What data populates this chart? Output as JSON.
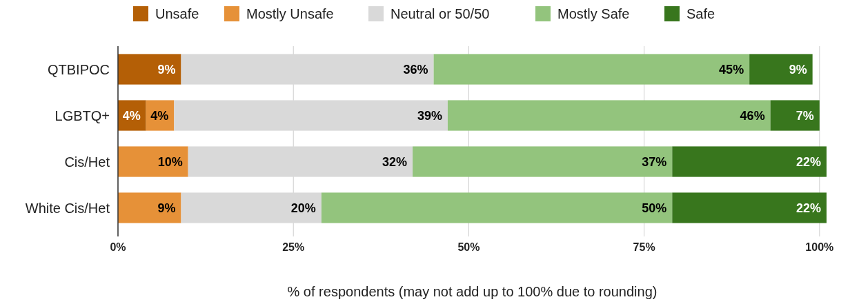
{
  "chart_data": {
    "type": "bar",
    "orientation": "horizontal",
    "stacked": true,
    "xlabel": "% of respondents (may not add up to 100% due to rounding)",
    "categories": [
      "QTBIPOC",
      "LGBTQ+",
      "Cis/Het",
      "White Cis/Het"
    ],
    "series": [
      {
        "name": "Unsafe",
        "color": "#b45f06",
        "values": [
          9,
          4,
          null,
          null
        ],
        "value_labels": [
          "9%",
          "4%",
          null,
          null
        ]
      },
      {
        "name": "Mostly Unsafe",
        "color": "#e69138",
        "values": [
          null,
          4,
          10,
          9
        ],
        "value_labels": [
          null,
          "4%",
          "10%",
          "9%"
        ]
      },
      {
        "name": "Neutral or 50/50",
        "color": "#d9d9d9",
        "values": [
          36,
          39,
          32,
          20
        ],
        "value_labels": [
          "36%",
          "39%",
          "32%",
          "20%"
        ]
      },
      {
        "name": "Mostly Safe",
        "color": "#93c47d",
        "values": [
          45,
          46,
          37,
          50
        ],
        "value_labels": [
          "45%",
          "46%",
          "37%",
          "50%"
        ]
      },
      {
        "name": "Safe",
        "color": "#38761d",
        "values": [
          9,
          7,
          22,
          22
        ],
        "value_labels": [
          "9%",
          "7%",
          "22%",
          "22%"
        ]
      }
    ],
    "xlim": [
      0,
      101
    ],
    "xticks": [
      {
        "value": 0,
        "label": "0%"
      },
      {
        "value": 25,
        "label": "25%"
      },
      {
        "value": 50,
        "label": "50%"
      },
      {
        "value": 75,
        "label": "75%"
      },
      {
        "value": 100,
        "label": "100%"
      }
    ],
    "grid": "x",
    "legend": "top"
  }
}
